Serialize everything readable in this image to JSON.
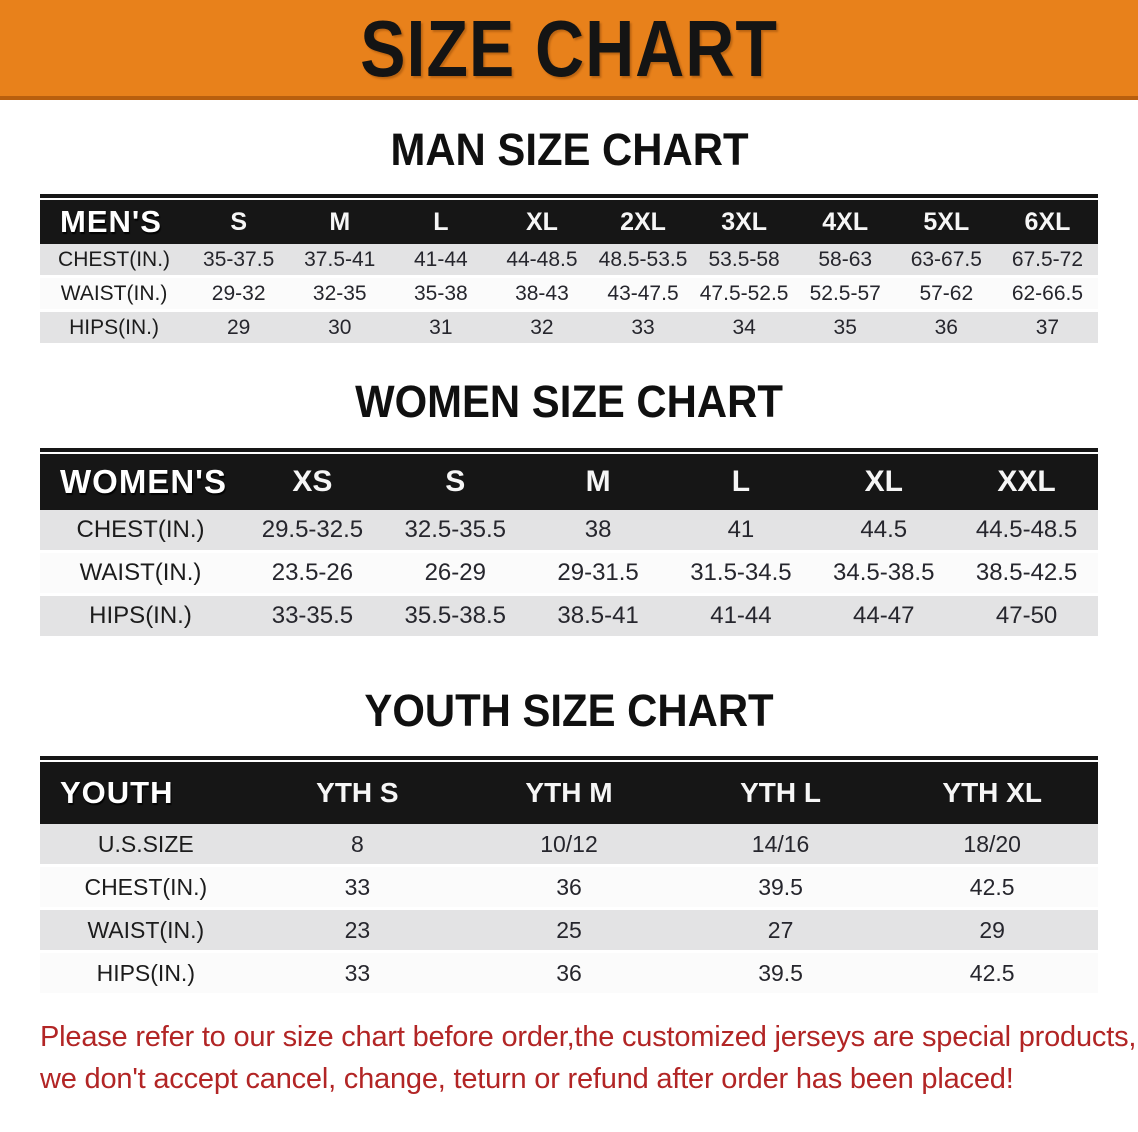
{
  "banner": {
    "title": "SIZE CHART",
    "bg_color": "#E8811B",
    "text_color": "#141414"
  },
  "colors": {
    "header_black": "#161616",
    "stripe_gray": "#E3E3E4",
    "stripe_white": "#FBFBFB",
    "disclaimer_red": "#B22525"
  },
  "sections": [
    {
      "id": "men",
      "title": "MAN SIZE CHART",
      "corner_label": "MEN'S",
      "columns": [
        "S",
        "M",
        "L",
        "XL",
        "2XL",
        "3XL",
        "4XL",
        "5XL",
        "6XL"
      ],
      "rows": [
        {
          "label": "CHEST(IN.)",
          "values": [
            "35-37.5",
            "37.5-41",
            "41-44",
            "44-48.5",
            "48.5-53.5",
            "53.5-58",
            "58-63",
            "63-67.5",
            "67.5-72"
          ]
        },
        {
          "label": "WAIST(IN.)",
          "values": [
            "29-32",
            "32-35",
            "35-38",
            "38-43",
            "43-47.5",
            "47.5-52.5",
            "52.5-57",
            "57-62",
            "62-66.5"
          ]
        },
        {
          "label": "HIPS(IN.)",
          "values": [
            "29",
            "30",
            "31",
            "32",
            "33",
            "34",
            "35",
            "36",
            "37"
          ]
        }
      ]
    },
    {
      "id": "women",
      "title": "WOMEN SIZE CHART",
      "corner_label": "WOMEN'S",
      "columns": [
        "XS",
        "S",
        "M",
        "L",
        "XL",
        "XXL"
      ],
      "rows": [
        {
          "label": "CHEST(IN.)",
          "values": [
            "29.5-32.5",
            "32.5-35.5",
            "38",
            "41",
            "44.5",
            "44.5-48.5"
          ]
        },
        {
          "label": "WAIST(IN.)",
          "values": [
            "23.5-26",
            "26-29",
            "29-31.5",
            "31.5-34.5",
            "34.5-38.5",
            "38.5-42.5"
          ]
        },
        {
          "label": "HIPS(IN.)",
          "values": [
            "33-35.5",
            "35.5-38.5",
            "38.5-41",
            "41-44",
            "44-47",
            "47-50"
          ]
        }
      ]
    },
    {
      "id": "youth",
      "title": "YOUTH SIZE CHART",
      "corner_label": "YOUTH",
      "columns": [
        "YTH S",
        "YTH M",
        "YTH L",
        "YTH XL"
      ],
      "rows": [
        {
          "label": "U.S.SIZE",
          "values": [
            "8",
            "10/12",
            "14/16",
            "18/20"
          ]
        },
        {
          "label": "CHEST(IN.)",
          "values": [
            "33",
            "36",
            "39.5",
            "42.5"
          ]
        },
        {
          "label": "WAIST(IN.)",
          "values": [
            "23",
            "25",
            "27",
            "29"
          ]
        },
        {
          "label": "HIPS(IN.)",
          "values": [
            "33",
            "36",
            "39.5",
            "42.5"
          ]
        }
      ]
    }
  ],
  "disclaimer": {
    "line1": "Please refer to our size chart before order,the customized jerseys are special products,",
    "line2": "we don't accept cancel, change, teturn or refund after order has been placed!"
  }
}
